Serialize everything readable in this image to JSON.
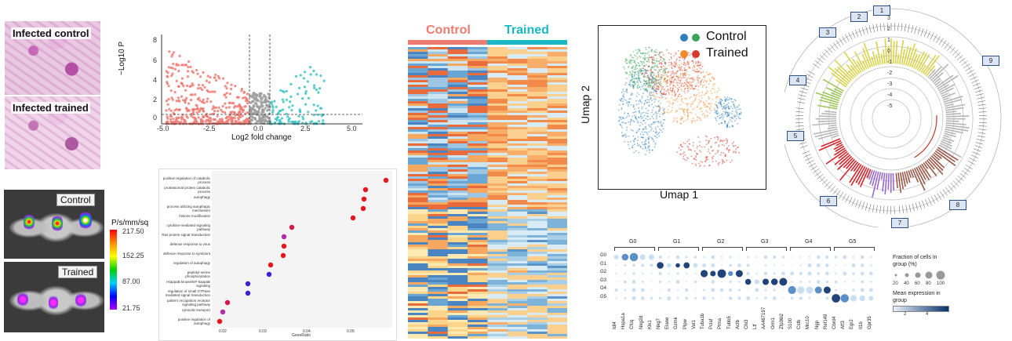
{
  "histology": {
    "top_label": "Infected control",
    "bottom_label": "Infected trained"
  },
  "imaging": {
    "top_label": "Control",
    "bottom_label": "Trained",
    "colorbar_title": "P/s/mm/sq",
    "colorbar_ticks": [
      "217.50",
      "152.25",
      "87.00",
      "21.75"
    ]
  },
  "volcano": {
    "ylabel": "−Log10 P",
    "xlabel": "Log2 fold change",
    "x_ticks": [
      "-5.0",
      "-2.5",
      "0.0",
      "2.5",
      "5.0"
    ],
    "y_ticks": [
      "0",
      "2",
      "4",
      "6",
      "8"
    ],
    "colors": {
      "down": "#f07b73",
      "up": "#3cc3c3",
      "ns": "#9e9e9e"
    }
  },
  "heatmap": {
    "group_labels": [
      "Control",
      "Trained"
    ],
    "group_colors": [
      "#ee7b72",
      "#19b8c4"
    ]
  },
  "umap": {
    "xlabel": "Umap 1",
    "ylabel": "Umap 2",
    "legend": [
      {
        "label": "Control",
        "colors": [
          "#2f7fbf",
          "#3aa55a"
        ]
      },
      {
        "label": "Trained",
        "colors": [
          "#f28a2a",
          "#d33b2f"
        ]
      }
    ]
  },
  "go_dot": {
    "terms": [
      "positive regulation of catabolic process",
      "proteasomal protein catabolic process",
      "autophagy",
      "process utilizing autophagic mechanism",
      "histone modification",
      "cytokine-mediated signaling pathway",
      "Ras protein signal transduction",
      "defense response to virus",
      "defense response to symbiont",
      "regulation of autophagy",
      "peptidyl-serine phosphorylation",
      "I-kappaB kinase/NF-kappaB signaling",
      "regulation of small GTPase mediated signal transduction",
      "pattern recognition receptor signaling pathway",
      "cytosolic transport",
      "positive regulation of autophagy"
    ],
    "xlabel": "GeneRatio",
    "x_ticks": [
      "0.02",
      "0.03",
      "0.04",
      "0.05"
    ]
  },
  "circos": {
    "ring_ticks": [
      "4",
      "3",
      "2",
      "1",
      "0",
      "-1",
      "-2",
      "-3",
      "-4",
      "-5"
    ],
    "sector_tags": [
      "1",
      "2",
      "3",
      "4",
      "5",
      "6",
      "7",
      "8",
      "9"
    ]
  },
  "dotplot": {
    "group_headers": [
      "G0",
      "G1",
      "G2",
      "G3",
      "G4",
      "G5"
    ],
    "row_labels": [
      "G0",
      "G1",
      "G2",
      "G3",
      "G4",
      "G5"
    ],
    "genes": [
      "Idl4",
      "Hspa1a",
      "Cfcq",
      "Nkg2d",
      "Klk1",
      "Nkg7",
      "Elane",
      "Gzmk",
      "Plpw",
      "Vat1",
      "Tuba1b",
      "Pclaf",
      "Ptma",
      "Tubb5",
      "Actb",
      "Chi3",
      "Ltf",
      "AA467197",
      "Orm1",
      "Zfp36l2",
      "S100",
      "Cstb",
      "Mrc10",
      "Ngp",
      "Ref149",
      "Cbrd4",
      "Atf3",
      "Egr2",
      "Il1b",
      "Gpr35"
    ],
    "legend_size_title": "Fraction of cells in group (%)",
    "legend_size_ticks": [
      "20",
      "40",
      "60",
      "80",
      "100"
    ],
    "legend_color_title": "Mean expression in group",
    "legend_color_ticks": [
      "2",
      "4"
    ]
  }
}
